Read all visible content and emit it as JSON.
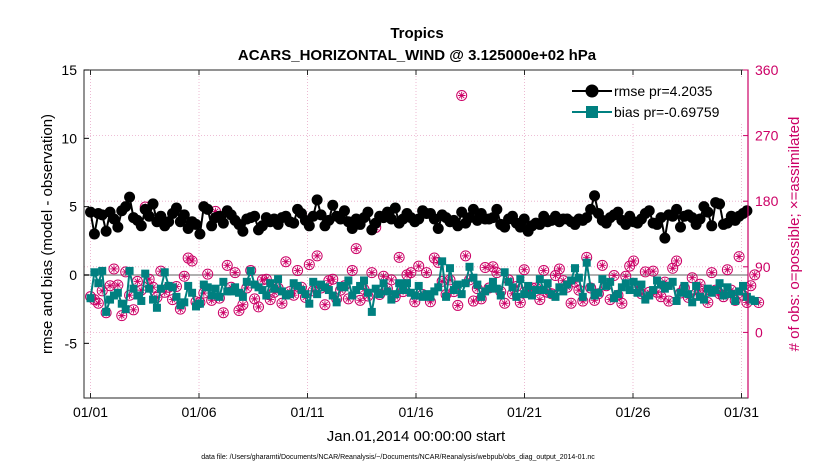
{
  "chart_data": {
    "type": "line",
    "title": "Tropics",
    "subtitle": "ACARS_HORIZONTAL_WIND @ 3.125000e+02 hPa",
    "xlabel": "Jan.01,2014 00:00:00 start",
    "ylabel_left": "rmse and bias (model - observation)",
    "ylabel_right": "# of obs: o=possible; ×=assimilated",
    "footer": "data file: /Users/gharamti/Documents/NCAR/Reanalysis/~/Documents/NCAR/Reanalysis/webpub/obs_diag_output_2014-01.nc",
    "xlim": [
      0.7,
      31.3
    ],
    "ylim_left": [
      -9,
      15
    ],
    "ylim_right": [
      -90,
      360
    ],
    "x_ticks": [
      1,
      6,
      11,
      16,
      21,
      26,
      31
    ],
    "x_tick_labels": [
      "01/01",
      "01/06",
      "01/11",
      "01/16",
      "01/21",
      "01/26",
      "01/31"
    ],
    "y_ticks_left": [
      -5,
      0,
      5,
      10,
      15
    ],
    "y_tick_labels_left": [
      "-5",
      "0",
      "5",
      "10",
      "15"
    ],
    "y_ticks_right": [
      0,
      90,
      180,
      270,
      360
    ],
    "y_tick_labels_right": [
      "0",
      "90",
      "180",
      "270",
      "360"
    ],
    "series": [
      {
        "name": "rmse pr=4.2035",
        "axis": "left",
        "color": "#000000",
        "marker": "circle",
        "values": [
          4.6,
          3.0,
          4.5,
          4.4,
          3.2,
          4.6,
          4.1,
          3.5,
          4.7,
          5.0,
          5.7,
          4.2,
          4.0,
          3.6,
          4.8,
          4.3,
          5.2,
          3.9,
          4.3,
          3.6,
          3.9,
          4.5,
          4.9,
          3.9,
          4.4,
          3.4,
          3.9,
          3.7,
          3.0,
          5.0,
          4.8,
          3.6,
          4.2,
          4.3,
          3.8,
          4.7,
          4.4,
          4.0,
          3.7,
          3.2,
          4.1,
          4.2,
          4.3,
          3.3,
          3.6,
          4.2,
          3.9,
          4.1,
          3.7,
          4.2,
          4.3,
          3.9,
          3.8,
          4.8,
          4.5,
          4.0,
          3.6,
          4.3,
          5.5,
          4.4,
          3.6,
          4.0,
          5.1,
          4.3,
          4.1,
          4.7,
          3.9,
          3.4,
          4.1,
          3.7,
          4.2,
          4.6,
          3.3,
          3.8,
          4.3,
          4.2,
          4.6,
          4.1,
          4.9,
          3.8,
          4.1,
          4.5,
          4.2,
          3.9,
          4.1,
          4.7,
          4.5,
          4.5,
          4.1,
          3.4,
          4.4,
          4.2,
          3.9,
          4.0,
          3.6,
          4.6,
          3.8,
          4.2,
          4.8,
          4.0,
          4.5,
          4.1,
          4.1,
          4.2,
          4.8,
          3.7,
          3.5,
          4.1,
          4.3,
          3.8,
          3.5,
          4.1,
          3.2,
          3.6,
          3.8,
          3.7,
          4.3,
          3.9,
          4.0,
          4.3,
          3.9,
          4.1,
          4.1,
          3.9,
          3.7,
          4.1,
          4.0,
          4.2,
          4.8,
          5.8,
          4.5,
          4.0,
          3.8,
          4.2,
          4.4,
          4.6,
          4.0,
          3.7,
          4.3,
          3.9,
          3.8,
          4.1,
          4.5,
          4.7,
          3.8,
          3.7,
          4.2,
          2.7,
          4.4,
          4.3,
          4.8,
          3.5,
          4.3,
          4.4,
          4.2,
          3.7,
          4.1,
          5.0,
          4.6,
          3.6,
          5.3,
          5.2,
          3.7,
          3.8,
          4.3,
          4.0,
          4.3,
          4.5,
          4.7
        ]
      },
      {
        "name": "bias pr=-0.69759",
        "axis": "left",
        "color": "#008080",
        "marker": "square",
        "values": [
          -1.7,
          0.2,
          -0.6,
          0.3,
          -2.7,
          -1.8,
          -1.5,
          -1.3,
          -2.1,
          -2.5,
          0.3,
          -1.0,
          -1.5,
          -1.9,
          0.1,
          -1.0,
          -1.8,
          -2.4,
          -1.0,
          0.2,
          -0.8,
          -0.9,
          -1.6,
          -2.2,
          -2.0,
          -0.8,
          -1.3,
          -2.3,
          -2.1,
          -0.7,
          -0.9,
          -1.5,
          -1.0,
          -1.6,
          -0.5,
          -1.2,
          -1.2,
          -0.9,
          -1.3,
          -1.6,
          -0.5,
          0.3,
          -0.7,
          -0.9,
          -1.1,
          -1.5,
          -0.6,
          -1.0,
          -0.3,
          -1.2,
          -1.5,
          -1.4,
          -0.6,
          -0.8,
          -1.1,
          -1.4,
          -2.1,
          -0.5,
          -1.4,
          -0.7,
          -0.9,
          -1.1,
          -1.5,
          -2.0,
          -0.8,
          -0.9,
          -0.4,
          -1.5,
          -1.1,
          -0.8,
          -0.4,
          -1.3,
          -2.7,
          -1.0,
          -1.4,
          -0.6,
          -1.2,
          -1.8,
          -1.4,
          -0.6,
          -1.1,
          -0.6,
          -1.3,
          -1.5,
          -0.8,
          -1.6,
          -1.4,
          -1.6,
          -1.2,
          -0.9,
          1.0,
          -1.6,
          0.5,
          -1.1,
          -0.7,
          -1.4,
          -0.6,
          0.6,
          -0.2,
          -0.7,
          -1.6,
          -1.2,
          -1.0,
          -0.5,
          -1.0,
          -1.5,
          0.2,
          -0.5,
          -0.9,
          -1.6,
          -0.3,
          -1.4,
          -0.8,
          -1.5,
          -1.1,
          -0.3,
          -1.1,
          -0.6,
          -1.4,
          -1.6,
          -0.9,
          -1.2,
          -0.7,
          -0.4,
          0.5,
          -0.2,
          -1.6,
          0.9,
          -0.9,
          -1.5,
          -1.3,
          -0.3,
          -0.8,
          -0.5,
          -1.7,
          -1.4,
          -0.9,
          -0.6,
          -1.1,
          -0.5,
          -1.3,
          -0.7,
          -1.8,
          -1.5,
          -1.1,
          -0.4,
          -0.7,
          -1.0,
          -0.8,
          -0.5,
          -1.9,
          -1.3,
          -0.8,
          -1.4,
          -2.0,
          -0.8,
          -1.6,
          -1.8,
          -1.0,
          -1.3,
          -1.1,
          -0.6,
          -1.5,
          -0.9,
          -1.4,
          -1.9,
          -1.2,
          -0.8,
          -1.6,
          -1.8,
          -1.9
        ]
      },
      {
        "name": "possible",
        "axis": "right",
        "color": "#cc0066",
        "marker": "circle-open",
        "values": [
          49,
          45,
          40,
          57,
          27,
          64,
          87,
          65,
          23,
          83,
          51,
          31,
          70,
          58,
          172,
          73,
          62,
          48,
          84,
          55,
          62,
          45,
          63,
          32,
          77,
          102,
          98,
          42,
          41,
          54,
          80,
          44,
          166,
          47,
          27,
          92,
          62,
          82,
          30,
          38,
          61,
          85,
          46,
          35,
          72,
          73,
          45,
          55,
          61,
          40,
          97,
          56,
          51,
          85,
          62,
          48,
          93,
          57,
          105,
          61,
          38,
          71,
          73,
          46,
          58,
          64,
          46,
          85,
          115,
          44,
          59,
          50,
          82,
          144,
          52,
          77,
          60,
          72,
          49,
          103,
          56,
          79,
          82,
          42,
          91,
          52,
          82,
          42,
          102,
          96,
          70,
          52,
          72,
          56,
          37,
          325,
          105,
          72,
          43,
          60,
          46,
          89,
          61,
          90,
          82,
          56,
          40,
          72,
          53,
          63,
          41,
          86,
          58,
          61,
          61,
          45,
          85,
          55,
          53,
          78,
          87,
          71,
          62,
          40,
          69,
          58,
          43,
          103,
          61,
          44,
          53,
          92,
          64,
          45,
          78,
          51,
          40,
          77,
          91,
          98,
          62,
          53,
          83,
          55,
          84,
          55,
          49,
          69,
          43,
          88,
          98,
          54,
          61,
          48,
          75,
          53,
          66,
          57,
          41,
          82,
          58,
          53,
          49,
          86,
          58,
          44,
          104,
          51,
          41,
          64,
          79,
          41
        ]
      },
      {
        "name": "assimilated",
        "axis": "right",
        "color": "#cc0066",
        "marker": "star",
        "values": [
          49,
          45,
          40,
          57,
          27,
          64,
          87,
          65,
          23,
          83,
          51,
          31,
          70,
          58,
          172,
          73,
          62,
          48,
          84,
          55,
          62,
          45,
          63,
          32,
          77,
          102,
          98,
          42,
          41,
          54,
          80,
          44,
          166,
          47,
          27,
          92,
          62,
          82,
          30,
          38,
          61,
          85,
          46,
          35,
          72,
          73,
          45,
          55,
          61,
          40,
          97,
          56,
          51,
          85,
          62,
          48,
          93,
          57,
          105,
          61,
          38,
          71,
          73,
          46,
          58,
          64,
          46,
          85,
          115,
          44,
          59,
          50,
          82,
          144,
          52,
          77,
          60,
          72,
          49,
          103,
          56,
          79,
          82,
          42,
          91,
          52,
          82,
          42,
          102,
          96,
          70,
          52,
          72,
          56,
          37,
          325,
          105,
          72,
          43,
          60,
          46,
          89,
          61,
          90,
          82,
          56,
          40,
          72,
          53,
          63,
          41,
          86,
          58,
          61,
          61,
          45,
          85,
          55,
          53,
          78,
          87,
          71,
          62,
          40,
          69,
          58,
          43,
          103,
          61,
          44,
          53,
          92,
          64,
          45,
          78,
          51,
          40,
          77,
          91,
          98,
          62,
          53,
          83,
          55,
          84,
          55,
          49,
          69,
          43,
          88,
          98,
          54,
          61,
          48,
          75,
          53,
          66,
          57,
          41,
          82,
          58,
          53,
          49,
          86,
          58,
          44,
          104,
          51,
          41,
          64,
          79,
          41
        ]
      }
    ],
    "legend": {
      "placement": "top-right",
      "entries": [
        "rmse pr=4.2035",
        "bias pr=-0.69759"
      ]
    },
    "grid": true,
    "zero_line": true
  },
  "colors": {
    "left_axis": "#000000",
    "right_axis": "#cc0066",
    "rmse": "#000000",
    "bias": "#008080",
    "obs": "#cc0066",
    "grid": "#e8a9c8",
    "zero_line": "#b0b0b0"
  }
}
